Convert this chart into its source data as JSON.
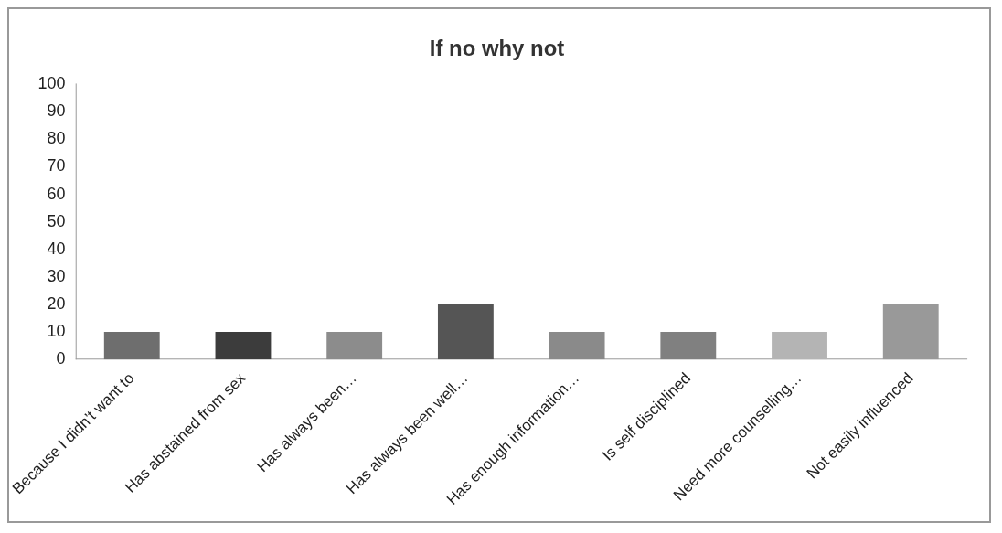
{
  "chart_data": {
    "type": "bar",
    "title": "If no why not",
    "categories": [
      "Because I didn’t want to",
      "Has abstained from sex",
      "Has always been…",
      "Has always been well…",
      "Has enough information…",
      "Is self disciplined",
      "Need more counselling…",
      "Not easily influenced"
    ],
    "values": [
      10,
      10,
      10,
      20,
      10,
      10,
      10,
      20
    ],
    "colors": [
      "#6e6e6e",
      "#3c3c3c",
      "#8c8c8c",
      "#555555",
      "#8a8a8a",
      "#808080",
      "#b4b4b4",
      "#999999"
    ],
    "ylim": [
      0,
      100
    ],
    "yticks": [
      0,
      10,
      20,
      30,
      40,
      50,
      60,
      70,
      80,
      90,
      100
    ],
    "grid": false,
    "legend": false
  }
}
